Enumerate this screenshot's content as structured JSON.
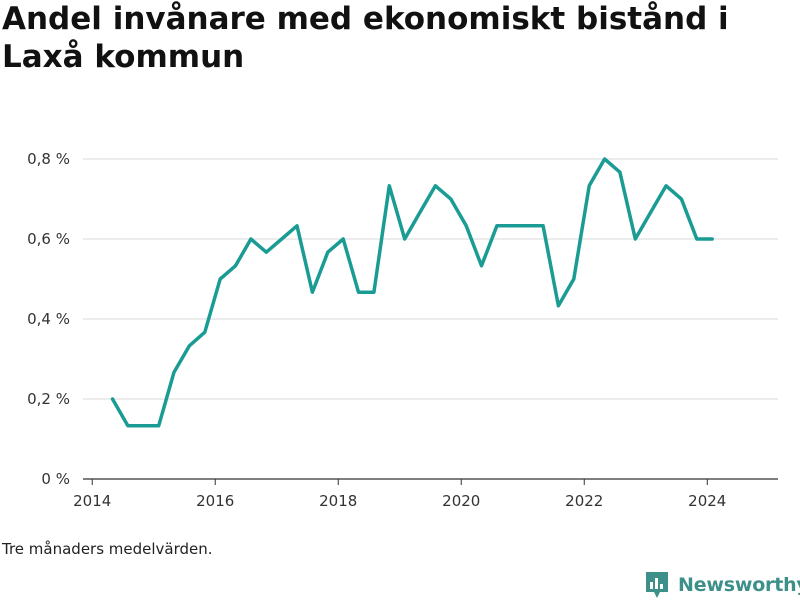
{
  "title": "Andel invånare med ekonomiskt bistånd i Laxå kommun",
  "note": "Tre månaders medelvärden.",
  "brand": {
    "name": "Newsworthy",
    "icon": "newsworthy-logo-icon",
    "color": "#3d8f8a"
  },
  "chart_data": {
    "type": "line",
    "title": "Andel invånare med ekonomiskt bistånd i Laxå kommun",
    "xlabel": "",
    "ylabel": "",
    "xlim": [
      2013.85,
      2025.15
    ],
    "ylim": [
      0,
      0.8
    ],
    "x_ticks": [
      2014,
      2016,
      2018,
      2020,
      2022,
      2024
    ],
    "y_ticks": [
      0,
      0.2,
      0.4,
      0.6,
      0.8
    ],
    "y_tick_labels": [
      "0 %",
      "0,2 %",
      "0,4 %",
      "0,6 %",
      "0,8 %"
    ],
    "grid": true,
    "color": "#1a9c94",
    "series": [
      {
        "x": [
          2014.33,
          2014.58,
          2014.83,
          2015.08,
          2015.33,
          2015.58,
          2015.83,
          2016.08,
          2016.33,
          2016.58,
          2016.83,
          2017.08,
          2017.33,
          2017.58,
          2017.83,
          2018.08,
          2018.33,
          2018.58,
          2018.83,
          2019.08,
          2019.33,
          2019.58,
          2019.83,
          2020.08,
          2020.33,
          2020.58,
          2020.83,
          2021.08,
          2021.33,
          2021.58,
          2021.83,
          2022.08,
          2022.33,
          2022.58,
          2022.83,
          2023.08,
          2023.33,
          2023.58,
          2023.83,
          2024.08
        ],
        "y": [
          0.2,
          0.133,
          0.133,
          0.133,
          0.267,
          0.333,
          0.367,
          0.5,
          0.533,
          0.6,
          0.567,
          0.6,
          0.633,
          0.467,
          0.567,
          0.6,
          0.467,
          0.467,
          0.733,
          0.6,
          0.667,
          0.733,
          0.7,
          0.633,
          0.533,
          0.633,
          0.633,
          0.633,
          0.633,
          0.433,
          0.5,
          0.733,
          0.8,
          0.767,
          0.6,
          0.667,
          0.733,
          0.7,
          0.6,
          0.6
        ]
      }
    ]
  }
}
